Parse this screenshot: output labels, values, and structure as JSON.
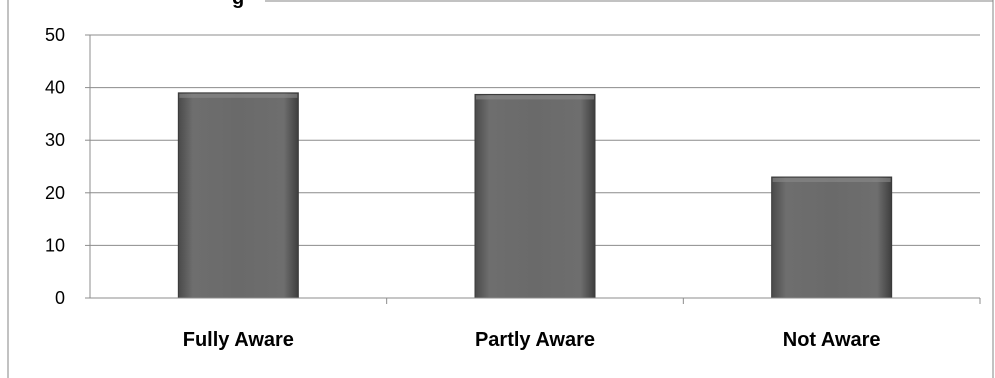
{
  "chart_data": {
    "type": "bar",
    "title": "",
    "xlabel": "",
    "ylabel": "",
    "categories": [
      "Fully Aware",
      "Partly Aware",
      "Not Aware"
    ],
    "values": [
      39,
      38.7,
      23
    ],
    "ylim": [
      0,
      50
    ],
    "yticks": [
      "0",
      "10",
      "20",
      "30",
      "40",
      "50"
    ],
    "grid": true,
    "legend": "none",
    "bar_color": "#666666",
    "grid_color": "#8c8c8c"
  }
}
